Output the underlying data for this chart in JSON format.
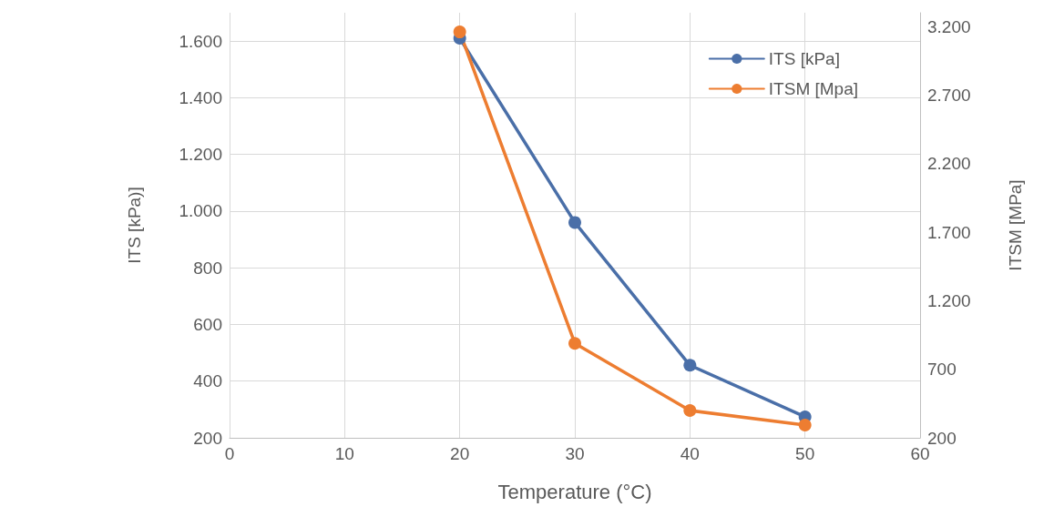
{
  "chart_data": {
    "type": "line",
    "xlabel": "Temperature (°C)",
    "ylabel": "ITS [kPa)]",
    "y2label": "ITSM [MPa]",
    "x": [
      20,
      30,
      40,
      50
    ],
    "series": [
      {
        "name": "ITS [kPa]",
        "color": "#4a6fa8",
        "values": [
          1610,
          960,
          456,
          274
        ]
      },
      {
        "name": "ITSM [Mpa]",
        "color": "#ed7d31",
        "values": [
          3160,
          889,
          399,
          293
        ],
        "axis": "y2"
      }
    ],
    "xlim": [
      0,
      60
    ],
    "xticks": [
      0,
      10,
      20,
      30,
      40,
      50,
      60
    ],
    "ylim": [
      200,
      1700
    ],
    "yticks": [
      200,
      400,
      600,
      800,
      {
        "value": 1000,
        "label": "1.000"
      },
      {
        "value": 1200,
        "label": "1.200"
      },
      {
        "value": 1400,
        "label": "1.400"
      },
      {
        "value": 1600,
        "label": "1.600"
      }
    ],
    "y2lim": [
      200,
      3300
    ],
    "y2ticks": [
      200,
      700,
      {
        "value": 1200,
        "label": "1.200"
      },
      {
        "value": 1700,
        "label": "1.700"
      },
      {
        "value": 2200,
        "label": "2.200"
      },
      {
        "value": 2700,
        "label": "2.700"
      },
      {
        "value": 3200,
        "label": "3.200"
      }
    ],
    "grid": true,
    "legend": "top right",
    "marker": "circle",
    "line_style": "solid"
  }
}
